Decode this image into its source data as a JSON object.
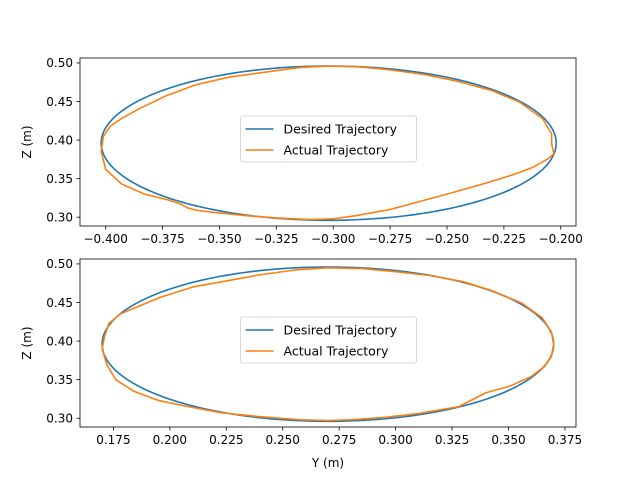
{
  "chart_data": [
    {
      "type": "line",
      "xlabel": "",
      "ylabel": "Z (m)",
      "xlim": [
        -0.4113,
        -0.1933
      ],
      "ylim": [
        0.2886,
        0.5064
      ],
      "xticks": [
        -0.4,
        -0.375,
        -0.35,
        -0.325,
        -0.3,
        -0.275,
        -0.25,
        -0.225,
        -0.2
      ],
      "xtick_labels": [
        "−0.400",
        "−0.375",
        "−0.350",
        "−0.325",
        "−0.300",
        "−0.275",
        "−0.250",
        "−0.225",
        "−0.200"
      ],
      "yticks": [
        0.3,
        0.35,
        0.4,
        0.45,
        0.5
      ],
      "ytick_labels": [
        "0.30",
        "0.35",
        "0.40",
        "0.45",
        "0.50"
      ],
      "legend": "center",
      "series": [
        {
          "name": "Desired Trajectory",
          "color": "#1f77b4",
          "shape": "ellipse",
          "center": [
            -0.302,
            0.396
          ],
          "radius_x": 0.1,
          "radius_z": 0.1
        },
        {
          "name": "Actual Trajectory",
          "color": "#ff7f0e",
          "points": [
            [
              -0.204,
              0.395
            ],
            [
              -0.203,
              0.382
            ],
            [
              -0.206,
              0.375
            ],
            [
              -0.212,
              0.365
            ],
            [
              -0.221,
              0.355
            ],
            [
              -0.232,
              0.345
            ],
            [
              -0.245,
              0.334
            ],
            [
              -0.26,
              0.322
            ],
            [
              -0.275,
              0.31
            ],
            [
              -0.29,
              0.302
            ],
            [
              -0.3,
              0.298
            ],
            [
              -0.31,
              0.297
            ],
            [
              -0.325,
              0.299
            ],
            [
              -0.338,
              0.302
            ],
            [
              -0.352,
              0.306
            ],
            [
              -0.36,
              0.309
            ],
            [
              -0.364,
              0.312
            ],
            [
              -0.367,
              0.317
            ],
            [
              -0.372,
              0.322
            ],
            [
              -0.383,
              0.33
            ],
            [
              -0.393,
              0.343
            ],
            [
              -0.4,
              0.362
            ],
            [
              -0.402,
              0.385
            ],
            [
              -0.401,
              0.405
            ],
            [
              -0.398,
              0.418
            ],
            [
              -0.393,
              0.428
            ],
            [
              -0.385,
              0.441
            ],
            [
              -0.373,
              0.458
            ],
            [
              -0.36,
              0.472
            ],
            [
              -0.345,
              0.482
            ],
            [
              -0.33,
              0.488
            ],
            [
              -0.315,
              0.494
            ],
            [
              -0.302,
              0.496
            ],
            [
              -0.289,
              0.495
            ],
            [
              -0.275,
              0.491
            ],
            [
              -0.26,
              0.485
            ],
            [
              -0.245,
              0.476
            ],
            [
              -0.23,
              0.464
            ],
            [
              -0.218,
              0.449
            ],
            [
              -0.208,
              0.428
            ],
            [
              -0.204,
              0.408
            ],
            [
              -0.204,
              0.395
            ]
          ]
        }
      ]
    },
    {
      "type": "line",
      "xlabel": "Y (m)",
      "ylabel": "Z (m)",
      "xlim": [
        0.1602,
        0.3799
      ],
      "ylim": [
        0.2886,
        0.5064
      ],
      "xticks": [
        0.175,
        0.2,
        0.225,
        0.25,
        0.275,
        0.3,
        0.325,
        0.35,
        0.375
      ],
      "xtick_labels": [
        "0.175",
        "0.200",
        "0.225",
        "0.250",
        "0.275",
        "0.300",
        "0.325",
        "0.350",
        "0.375"
      ],
      "yticks": [
        0.3,
        0.35,
        0.4,
        0.45,
        0.5
      ],
      "ytick_labels": [
        "0.30",
        "0.35",
        "0.40",
        "0.45",
        "0.50"
      ],
      "legend": "center",
      "series": [
        {
          "name": "Desired Trajectory",
          "color": "#1f77b4",
          "shape": "ellipse",
          "center": [
            0.27,
            0.396
          ],
          "radius_x": 0.1,
          "radius_z": 0.1
        },
        {
          "name": "Actual Trajectory",
          "color": "#ff7f0e",
          "points": [
            [
              0.37,
              0.396
            ],
            [
              0.369,
              0.38
            ],
            [
              0.366,
              0.367
            ],
            [
              0.36,
              0.354
            ],
            [
              0.351,
              0.342
            ],
            [
              0.34,
              0.333
            ],
            [
              0.328,
              0.315
            ],
            [
              0.31,
              0.306
            ],
            [
              0.295,
              0.301
            ],
            [
              0.28,
              0.298
            ],
            [
              0.27,
              0.297
            ],
            [
              0.258,
              0.298
            ],
            [
              0.24,
              0.302
            ],
            [
              0.223,
              0.307
            ],
            [
              0.208,
              0.315
            ],
            [
              0.195,
              0.323
            ],
            [
              0.184,
              0.335
            ],
            [
              0.176,
              0.35
            ],
            [
              0.172,
              0.37
            ],
            [
              0.17,
              0.39
            ],
            [
              0.171,
              0.405
            ],
            [
              0.173,
              0.423
            ],
            [
              0.178,
              0.435
            ],
            [
              0.186,
              0.445
            ],
            [
              0.196,
              0.457
            ],
            [
              0.21,
              0.47
            ],
            [
              0.225,
              0.478
            ],
            [
              0.24,
              0.486
            ],
            [
              0.255,
              0.492
            ],
            [
              0.27,
              0.495
            ],
            [
              0.285,
              0.494
            ],
            [
              0.3,
              0.49
            ],
            [
              0.315,
              0.485
            ],
            [
              0.33,
              0.477
            ],
            [
              0.343,
              0.465
            ],
            [
              0.356,
              0.449
            ],
            [
              0.365,
              0.43
            ],
            [
              0.369,
              0.412
            ],
            [
              0.37,
              0.396
            ]
          ]
        }
      ]
    }
  ]
}
